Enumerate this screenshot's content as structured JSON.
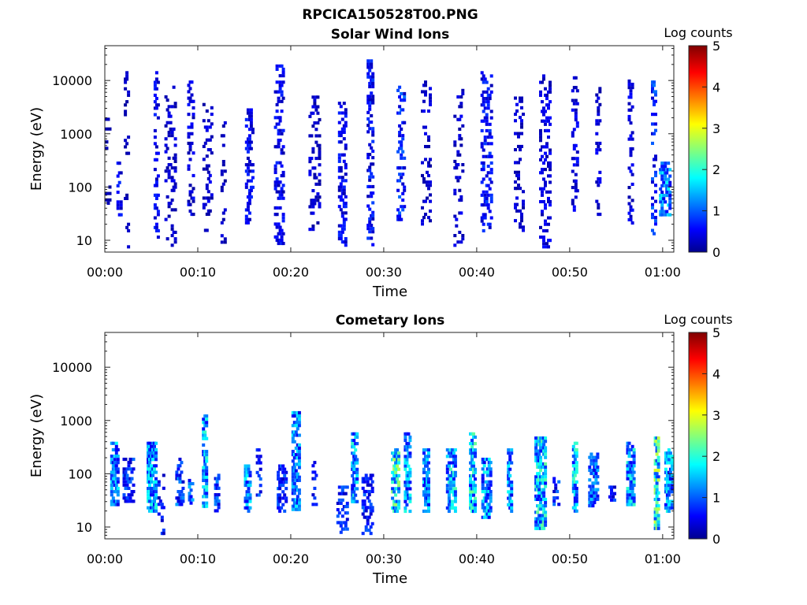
{
  "figure_title": "RPCICA150528T00.PNG",
  "chart_data": [
    {
      "type": "heatmap",
      "title": "Solar Wind Ions",
      "xlabel": "Time",
      "ylabel": "Energy (eV)",
      "x_ticks": [
        "00:00",
        "00:10",
        "00:20",
        "00:30",
        "00:40",
        "00:50",
        "01:00"
      ],
      "xlim_minutes": [
        0,
        61.2
      ],
      "y_scale": "log",
      "y_ticks": [
        "10",
        "100",
        "1000",
        "10000"
      ],
      "ylim": [
        6,
        45000
      ],
      "colorbar": {
        "label": "Log counts",
        "ticks": [
          "0",
          "1",
          "2",
          "3",
          "4",
          "5"
        ],
        "range": [
          0,
          5
        ],
        "colormap": "jet"
      },
      "description_of_data": "sparse scattered counts, mostly log counts 0-1.5, concentrated between 10 and 500 eV with scattered points up to ~20000 eV",
      "bursts": [
        {
          "t": 0.3,
          "emin": 40,
          "emax": 2000,
          "density": 0.15,
          "level": 0.3
        },
        {
          "t": 1.5,
          "emin": 30,
          "emax": 300,
          "density": 0.35,
          "level": 0.7
        },
        {
          "t": 2.3,
          "emin": 8,
          "emax": 15000,
          "density": 0.15,
          "level": 0.4
        },
        {
          "t": 5.5,
          "emin": 10,
          "emax": 15000,
          "density": 0.3,
          "level": 0.7
        },
        {
          "t": 7.0,
          "emin": 8,
          "emax": 8000,
          "density": 0.2,
          "level": 0.5
        },
        {
          "t": 9.2,
          "emin": 30,
          "emax": 10000,
          "density": 0.25,
          "level": 0.6
        },
        {
          "t": 11.0,
          "emin": 15,
          "emax": 5000,
          "density": 0.2,
          "level": 0.5
        },
        {
          "t": 12.7,
          "emin": 8,
          "emax": 3000,
          "density": 0.2,
          "level": 0.4
        },
        {
          "t": 15.5,
          "emin": 20,
          "emax": 3000,
          "density": 0.3,
          "level": 0.7
        },
        {
          "t": 18.7,
          "emin": 8,
          "emax": 20000,
          "density": 0.3,
          "level": 0.7
        },
        {
          "t": 22.5,
          "emin": 15,
          "emax": 6000,
          "density": 0.2,
          "level": 0.5
        },
        {
          "t": 25.5,
          "emin": 8,
          "emax": 4000,
          "density": 0.35,
          "level": 0.7
        },
        {
          "t": 28.5,
          "emin": 8,
          "emax": 25000,
          "density": 0.35,
          "level": 0.8
        },
        {
          "t": 31.8,
          "emin": 20,
          "emax": 8000,
          "density": 0.3,
          "level": 1.0
        },
        {
          "t": 34.5,
          "emin": 20,
          "emax": 10000,
          "density": 0.2,
          "level": 0.5
        },
        {
          "t": 38.0,
          "emin": 8,
          "emax": 8000,
          "density": 0.2,
          "level": 0.5
        },
        {
          "t": 41.0,
          "emin": 15,
          "emax": 15000,
          "density": 0.3,
          "level": 0.8
        },
        {
          "t": 44.5,
          "emin": 15,
          "emax": 5000,
          "density": 0.2,
          "level": 0.5
        },
        {
          "t": 47.3,
          "emin": 8,
          "emax": 15000,
          "density": 0.25,
          "level": 0.6
        },
        {
          "t": 50.5,
          "emin": 30,
          "emax": 12000,
          "density": 0.25,
          "level": 0.6
        },
        {
          "t": 53.0,
          "emin": 30,
          "emax": 10000,
          "density": 0.25,
          "level": 0.6
        },
        {
          "t": 56.5,
          "emin": 10,
          "emax": 12000,
          "density": 0.25,
          "level": 0.6
        },
        {
          "t": 59.0,
          "emin": 10,
          "emax": 10000,
          "density": 0.3,
          "level": 1.0
        },
        {
          "t": 60.2,
          "emin": 30,
          "emax": 300,
          "density": 0.5,
          "level": 1.6
        }
      ]
    },
    {
      "type": "heatmap",
      "title": "Cometary Ions",
      "xlabel": "Time",
      "ylabel": "Energy (eV)",
      "x_ticks": [
        "00:00",
        "00:10",
        "00:20",
        "00:30",
        "00:40",
        "00:50",
        "01:00"
      ],
      "xlim_minutes": [
        0,
        61.2
      ],
      "y_scale": "log",
      "y_ticks": [
        "10",
        "100",
        "1000",
        "10000"
      ],
      "ylim": [
        6,
        45000
      ],
      "colorbar": {
        "label": "Log counts",
        "ticks": [
          "0",
          "1",
          "2",
          "3",
          "4",
          "5"
        ],
        "range": [
          0,
          5
        ],
        "colormap": "jet"
      },
      "description_of_data": "periodic bursts of counts roughly every 2-3 minutes, log counts up to ~2.5, mostly between 15 and 600 eV",
      "bursts": [
        {
          "t": 1.0,
          "emin": 25,
          "emax": 400,
          "density": 0.7,
          "level": 1.6
        },
        {
          "t": 2.5,
          "emin": 30,
          "emax": 200,
          "density": 0.4,
          "level": 1.0
        },
        {
          "t": 5.0,
          "emin": 20,
          "emax": 400,
          "density": 0.75,
          "level": 1.7
        },
        {
          "t": 6.0,
          "emin": 8,
          "emax": 100,
          "density": 0.3,
          "level": 0.8
        },
        {
          "t": 8.0,
          "emin": 25,
          "emax": 200,
          "density": 0.5,
          "level": 1.2
        },
        {
          "t": 9.2,
          "emin": 30,
          "emax": 80,
          "density": 0.5,
          "level": 1.3
        },
        {
          "t": 10.7,
          "emin": 25,
          "emax": 1300,
          "density": 0.7,
          "level": 1.8
        },
        {
          "t": 12.0,
          "emin": 20,
          "emax": 100,
          "density": 0.5,
          "level": 1.1
        },
        {
          "t": 15.3,
          "emin": 20,
          "emax": 150,
          "density": 0.6,
          "level": 1.6
        },
        {
          "t": 16.5,
          "emin": 40,
          "emax": 300,
          "density": 0.4,
          "level": 1.2
        },
        {
          "t": 19.0,
          "emin": 20,
          "emax": 150,
          "density": 0.4,
          "level": 1.0
        },
        {
          "t": 20.5,
          "emin": 20,
          "emax": 1500,
          "density": 0.6,
          "level": 1.6
        },
        {
          "t": 22.5,
          "emin": 20,
          "emax": 200,
          "density": 0.3,
          "level": 0.8
        },
        {
          "t": 25.5,
          "emin": 8,
          "emax": 60,
          "density": 0.4,
          "level": 1.0
        },
        {
          "t": 26.8,
          "emin": 30,
          "emax": 600,
          "density": 0.7,
          "level": 1.8
        },
        {
          "t": 28.2,
          "emin": 8,
          "emax": 100,
          "density": 0.4,
          "level": 1.0
        },
        {
          "t": 31.2,
          "emin": 20,
          "emax": 300,
          "density": 0.7,
          "level": 2.3
        },
        {
          "t": 32.5,
          "emin": 20,
          "emax": 600,
          "density": 0.6,
          "level": 1.7
        },
        {
          "t": 34.5,
          "emin": 20,
          "emax": 300,
          "density": 0.6,
          "level": 1.6
        },
        {
          "t": 37.2,
          "emin": 20,
          "emax": 300,
          "density": 0.65,
          "level": 1.9
        },
        {
          "t": 39.5,
          "emin": 20,
          "emax": 600,
          "density": 0.7,
          "level": 2.0
        },
        {
          "t": 41.0,
          "emin": 15,
          "emax": 200,
          "density": 0.6,
          "level": 1.7
        },
        {
          "t": 43.5,
          "emin": 20,
          "emax": 300,
          "density": 0.6,
          "level": 1.6
        },
        {
          "t": 46.8,
          "emin": 10,
          "emax": 500,
          "density": 0.7,
          "level": 2.0
        },
        {
          "t": 48.5,
          "emin": 25,
          "emax": 100,
          "density": 0.4,
          "level": 1.0
        },
        {
          "t": 50.5,
          "emin": 20,
          "emax": 400,
          "density": 0.7,
          "level": 1.9
        },
        {
          "t": 52.5,
          "emin": 25,
          "emax": 250,
          "density": 0.55,
          "level": 1.4
        },
        {
          "t": 54.5,
          "emin": 30,
          "emax": 60,
          "density": 0.4,
          "level": 0.9
        },
        {
          "t": 56.5,
          "emin": 25,
          "emax": 400,
          "density": 0.7,
          "level": 1.8
        },
        {
          "t": 59.3,
          "emin": 10,
          "emax": 500,
          "density": 0.75,
          "level": 2.5
        },
        {
          "t": 60.6,
          "emin": 20,
          "emax": 300,
          "density": 0.6,
          "level": 1.7
        }
      ]
    }
  ]
}
